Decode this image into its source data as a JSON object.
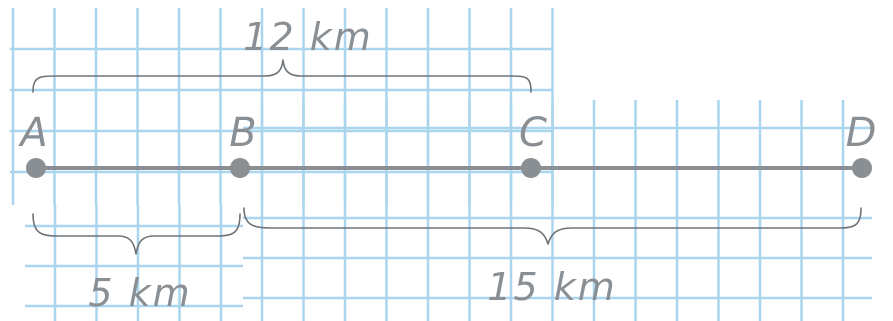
{
  "points": [
    {
      "id": "A",
      "label": "A"
    },
    {
      "id": "B",
      "label": "B"
    },
    {
      "id": "C",
      "label": "C"
    },
    {
      "id": "D",
      "label": "D"
    }
  ],
  "distances": {
    "ac": {
      "from": "A",
      "to": "C",
      "label": "12 km"
    },
    "ab": {
      "from": "A",
      "to": "B",
      "label": "5 km"
    },
    "bd": {
      "from": "B",
      "to": "D",
      "label": "15 km"
    }
  },
  "colors": {
    "grid": "#a9d5ee",
    "line": "#8a8f94",
    "brace": "#6f7478",
    "text": "#8a8f94"
  }
}
